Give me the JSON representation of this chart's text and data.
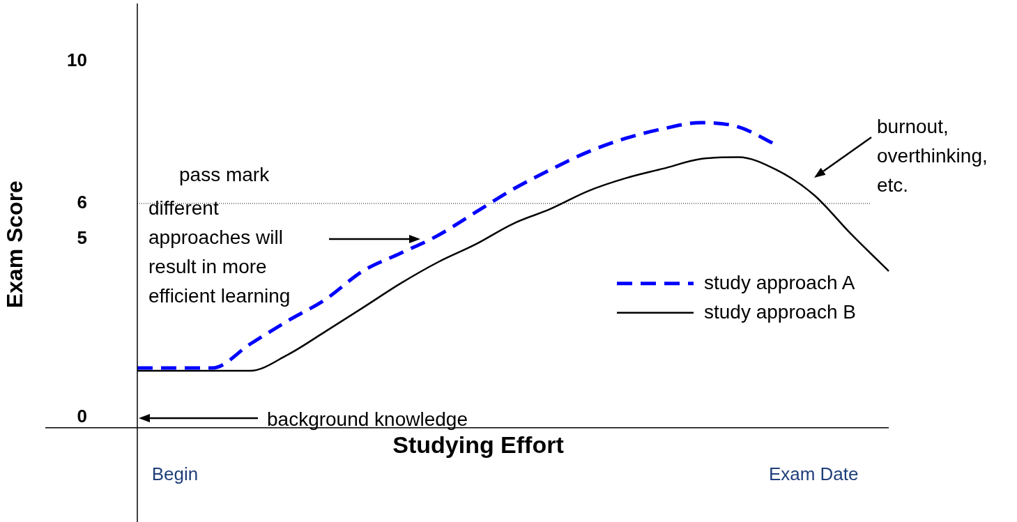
{
  "chart_data": {
    "type": "line",
    "xlabel": "Studying Effort",
    "ylabel": "Exam Score",
    "categories": [
      null,
      "Begin",
      null,
      null,
      null,
      null,
      null,
      null,
      null,
      null,
      null,
      null,
      null,
      null,
      null,
      null,
      null,
      null,
      "Exam Date",
      null,
      null
    ],
    "ylim": [
      -0.3,
      10
    ],
    "yticks": [
      0,
      5,
      6,
      10
    ],
    "series": [
      {
        "name": "study approach A",
        "color": "#0000ff",
        "line_style": "dashed",
        "values": [
          1.38,
          1.38,
          1.38,
          2.05,
          2.7,
          3.3,
          4.1,
          4.6,
          5.1,
          5.75,
          6.4,
          6.95,
          7.45,
          7.83,
          8.1,
          8.27,
          8.15,
          7.65,
          null,
          null,
          null
        ]
      },
      {
        "name": "study approach B",
        "color": "#000000",
        "line_style": "solid",
        "values": [
          1.3,
          1.3,
          1.3,
          1.3,
          1.75,
          2.4,
          3.07,
          3.75,
          4.35,
          4.85,
          5.43,
          5.85,
          6.35,
          6.71,
          6.98,
          7.25,
          7.3,
          6.95,
          6.25,
          5.14,
          4.1
        ]
      }
    ],
    "ref_lines": [
      {
        "axis": "y",
        "value": 6,
        "label": "pass mark",
        "color": "#000000",
        "line_style": "dotted"
      }
    ],
    "annotations": [
      "different approaches will result in more efficient learning",
      "burnout, overthinking, etc.",
      "background knowledge"
    ],
    "legend": "bottom right",
    "marker": "none",
    "grid": false
  }
}
